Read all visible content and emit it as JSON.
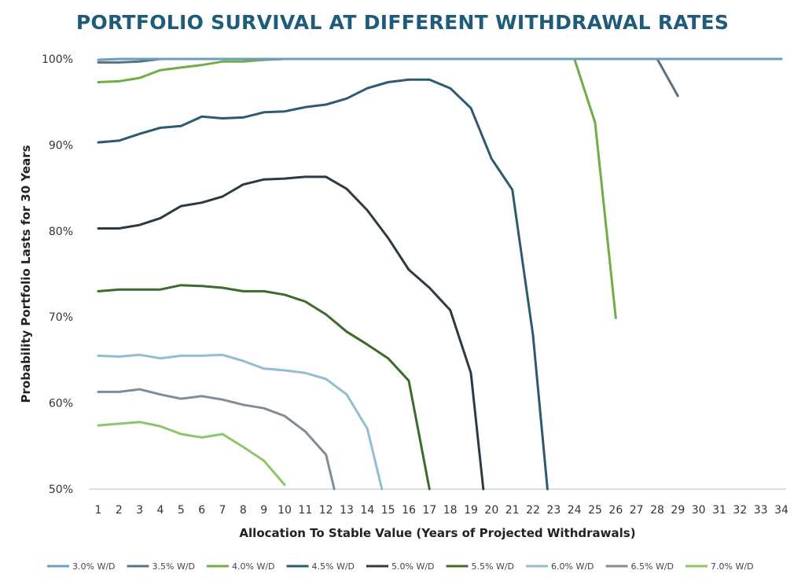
{
  "chart_data": {
    "type": "line",
    "title": "PORTFOLIO SURVIVAL AT DIFFERENT WITHDRAWAL RATES",
    "xlabel": "Allocation To Stable Value (Years of Projected Withdrawals)",
    "ylabel": "Probability Portfolio Lasts for 30 Years",
    "xlim": [
      1,
      34
    ],
    "ylim": [
      50,
      100
    ],
    "x_ticks": [
      1,
      2,
      3,
      4,
      5,
      6,
      7,
      8,
      9,
      10,
      11,
      12,
      13,
      14,
      15,
      16,
      17,
      18,
      19,
      20,
      21,
      22,
      23,
      24,
      25,
      26,
      27,
      28,
      29,
      30,
      31,
      32,
      33,
      34
    ],
    "y_ticks": [
      50,
      60,
      70,
      80,
      90,
      100
    ],
    "y_tick_labels": [
      "50%",
      "60%",
      "70%",
      "80%",
      "90%",
      "100%"
    ],
    "grid": false,
    "legend_position": "bottom",
    "series": [
      {
        "name": "3.0% W/D",
        "color": "#6a9fbf",
        "x": [
          1,
          2,
          3,
          4,
          5,
          6,
          7,
          8,
          9,
          10,
          11,
          12,
          13,
          14,
          15,
          16,
          17,
          18,
          19,
          20,
          21,
          22,
          23,
          24,
          25,
          26,
          27,
          28,
          29,
          30,
          31,
          32,
          33,
          34
        ],
        "values": [
          99.9,
          100,
          100,
          100,
          100,
          100,
          100,
          100,
          100,
          100,
          100,
          100,
          100,
          100,
          100,
          100,
          100,
          100,
          100,
          100,
          100,
          100,
          100,
          100,
          100,
          100,
          100,
          100,
          100,
          100,
          100,
          100,
          100,
          100
        ]
      },
      {
        "name": "3.5% W/D",
        "color": "#5d7281",
        "x": [
          1,
          2,
          3,
          4,
          5,
          6,
          7,
          8,
          9,
          10,
          11,
          12,
          13,
          14,
          15,
          16,
          17,
          18,
          19,
          20,
          21,
          22,
          23,
          24,
          25,
          26,
          27,
          28,
          29
        ],
        "values": [
          99.6,
          99.6,
          99.7,
          100,
          100,
          100,
          100,
          100,
          100,
          100,
          100,
          100,
          100,
          100,
          100,
          100,
          100,
          100,
          100,
          100,
          100,
          100,
          100,
          100,
          100,
          100,
          100,
          100,
          95.7
        ]
      },
      {
        "name": "4.0% W/D",
        "color": "#6fae45",
        "x": [
          1,
          2,
          3,
          4,
          5,
          6,
          7,
          8,
          9,
          10,
          11,
          12,
          13,
          14,
          15,
          16,
          17,
          18,
          19,
          20,
          21,
          22,
          23,
          24,
          25,
          26
        ],
        "values": [
          97.3,
          97.4,
          97.8,
          98.7,
          99.0,
          99.3,
          99.7,
          99.7,
          99.9,
          100,
          100,
          100,
          100,
          100,
          100,
          100,
          100,
          100,
          100,
          100,
          100,
          100,
          100,
          100,
          92.6,
          69.9
        ]
      },
      {
        "name": "4.5% W/D",
        "color": "#2b5b6f",
        "x": [
          1,
          2,
          3,
          4,
          5,
          6,
          7,
          8,
          9,
          10,
          11,
          12,
          13,
          14,
          15,
          16,
          17,
          18,
          19,
          20,
          21,
          22,
          22.7
        ],
        "values": [
          90.3,
          90.5,
          91.3,
          92.0,
          92.2,
          93.3,
          93.1,
          93.2,
          93.8,
          93.9,
          94.4,
          94.7,
          95.4,
          96.6,
          97.3,
          97.6,
          97.6,
          96.6,
          94.3,
          88.4,
          84.8,
          67.9,
          50
        ]
      },
      {
        "name": "5.0% W/D",
        "color": "#2e3a42",
        "x": [
          1,
          2,
          3,
          4,
          5,
          6,
          7,
          8,
          9,
          10,
          11,
          12,
          13,
          14,
          15,
          16,
          17,
          18,
          19,
          19.6
        ],
        "values": [
          80.3,
          80.3,
          80.7,
          81.5,
          82.9,
          83.3,
          84.0,
          85.4,
          86.0,
          86.1,
          86.3,
          86.3,
          84.9,
          82.4,
          79.2,
          75.5,
          73.4,
          70.8,
          63.5,
          50
        ]
      },
      {
        "name": "5.5% W/D",
        "color": "#3d6b2a",
        "x": [
          1,
          2,
          3,
          4,
          5,
          6,
          7,
          8,
          9,
          10,
          11,
          12,
          13,
          14,
          15,
          16,
          17
        ],
        "values": [
          73.0,
          73.2,
          73.2,
          73.2,
          73.7,
          73.6,
          73.4,
          73.0,
          73.0,
          72.6,
          71.8,
          70.3,
          68.3,
          66.8,
          65.2,
          62.6,
          50
        ]
      },
      {
        "name": "6.0% W/D",
        "color": "#93bdd0",
        "x": [
          1,
          2,
          3,
          4,
          5,
          6,
          7,
          8,
          9,
          10,
          11,
          12,
          13,
          14,
          14.7
        ],
        "values": [
          65.5,
          65.4,
          65.6,
          65.2,
          65.5,
          65.5,
          65.6,
          64.9,
          64.0,
          63.8,
          63.5,
          62.8,
          61.0,
          57.0,
          50
        ]
      },
      {
        "name": "6.5% W/D",
        "color": "#7f8d96",
        "x": [
          1,
          2,
          3,
          4,
          5,
          6,
          7,
          8,
          9,
          10,
          11,
          12,
          12.4
        ],
        "values": [
          61.3,
          61.3,
          61.6,
          61.0,
          60.5,
          60.8,
          60.4,
          59.8,
          59.4,
          58.5,
          56.7,
          54.0,
          50
        ]
      },
      {
        "name": "7.0% W/D",
        "color": "#8cc66a",
        "x": [
          1,
          2,
          3,
          4,
          5,
          6,
          7,
          8,
          9,
          10
        ],
        "values": [
          57.4,
          57.6,
          57.8,
          57.3,
          56.4,
          56.0,
          56.4,
          54.9,
          53.3,
          50.5
        ]
      }
    ]
  }
}
